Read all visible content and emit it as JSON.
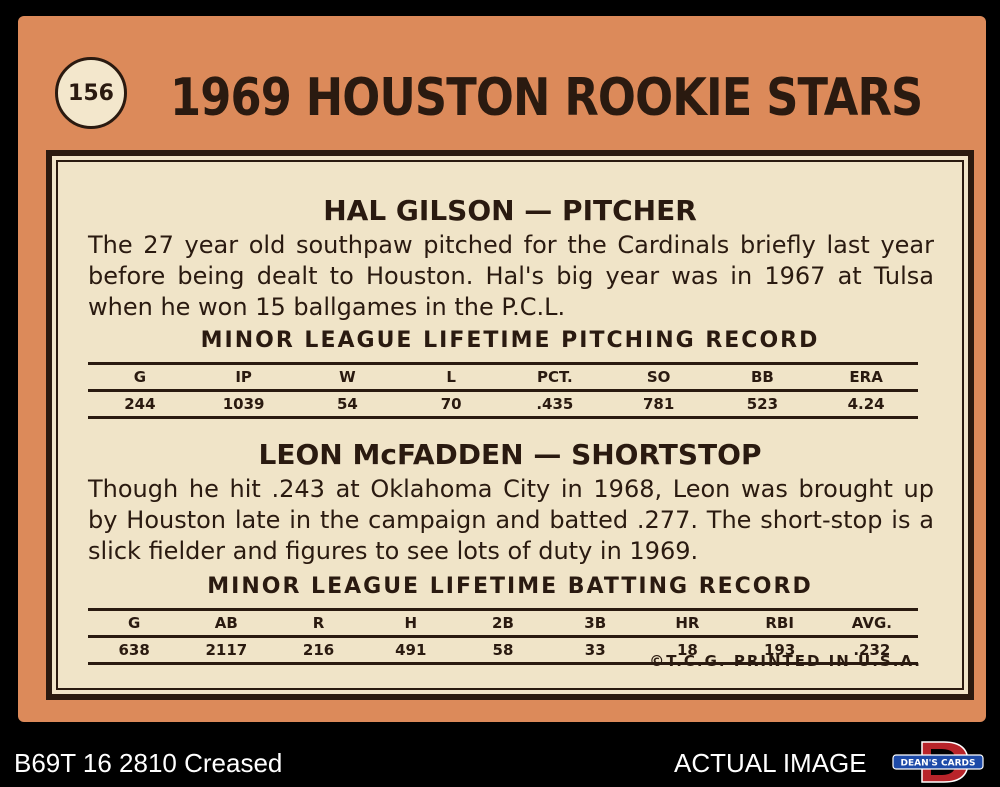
{
  "card": {
    "number": "156",
    "title": "1969 HOUSTON ROOKIE STARS",
    "player1": {
      "heading": "HAL  GILSON — PITCHER",
      "bio": "The 27 year old southpaw pitched for the Cardinals briefly last year before being dealt to Houston. Hal's big year was in 1967 at Tulsa when he won 15 ballgames in the P.C.L.",
      "record_title": "MINOR LEAGUE LIFETIME PITCHING RECORD",
      "record_headers": [
        "G",
        "IP",
        "W",
        "L",
        "PCT.",
        "SO",
        "BB",
        "ERA"
      ],
      "record_values": [
        "244",
        "1039",
        "54",
        "70",
        ".435",
        "781",
        "523",
        "4.24"
      ]
    },
    "player2": {
      "heading": "LEON  McFADDEN — SHORTSTOP",
      "bio": "Though he hit .243 at Oklahoma City in 1968, Leon was brought up by Houston late in the campaign and batted .277. The short-stop is a slick fielder and figures to see lots of duty in 1969.",
      "record_title": "MINOR LEAGUE LIFETIME BATTING RECORD",
      "record_headers": [
        "G",
        "AB",
        "R",
        "H",
        "2B",
        "3B",
        "HR",
        "RBI",
        "AVG."
      ],
      "record_values": [
        "638",
        "2117",
        "216",
        "491",
        "58",
        "33",
        "18",
        "193",
        ".232"
      ]
    },
    "copyright": "©T.C.G. PRINTED IN U.S.A."
  },
  "caption": {
    "left": "B69T 16 2810 Creased",
    "right": "ACTUAL IMAGE"
  },
  "logo": {
    "text": "DEAN'S CARDS",
    "letter": "D"
  },
  "colors": {
    "card_orange": "#dc8a5a",
    "panel_cream": "#f0e4c8",
    "ink": "#2a1a10",
    "logo_red": "#b8242a",
    "logo_blue": "#1d4aa8"
  }
}
